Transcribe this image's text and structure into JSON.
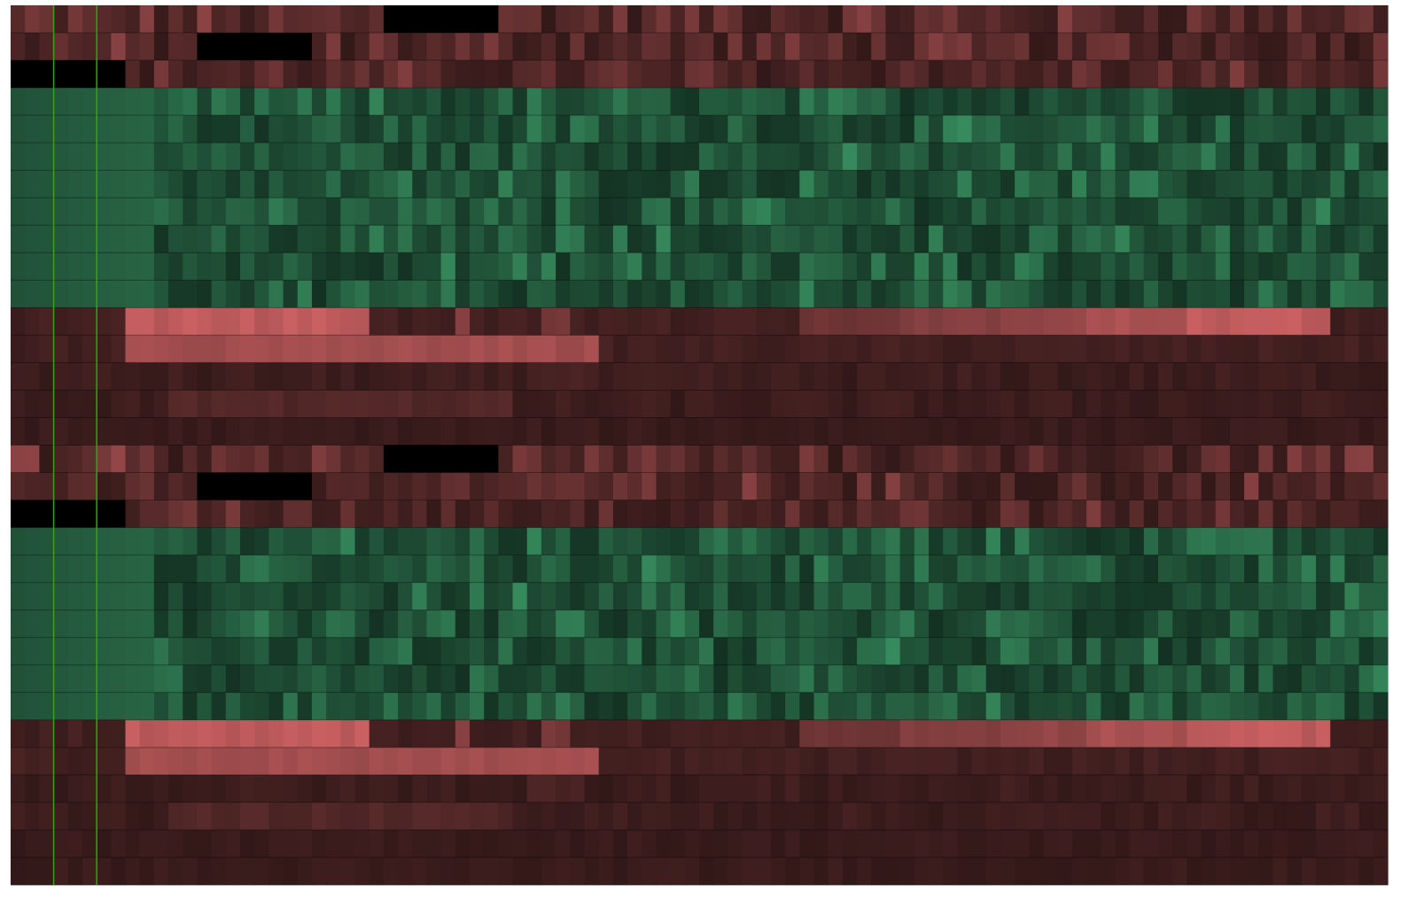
{
  "chart_data": {
    "type": "heatmap",
    "title": "",
    "xlabel": "",
    "ylabel": "",
    "grid": false,
    "legend": "none",
    "colors": {
      "low_group": "#d26466",
      "high_group": "#46b378",
      "background_low": "#321818",
      "background_high": "#143223",
      "missing": "#000000",
      "marker": "#39a019"
    },
    "marker_columns": [
      3,
      6
    ],
    "column_count": 96,
    "panels": [
      {
        "name": "panel-1",
        "rows": [
          {
            "group": "low",
            "pattern": "dense",
            "intensity": 0.55,
            "gaps": [
              [
                26,
                34
              ]
            ]
          },
          {
            "group": "low",
            "pattern": "dense",
            "intensity": 0.5,
            "gaps": [
              [
                13,
                21
              ]
            ]
          },
          {
            "group": "low",
            "pattern": "dense",
            "intensity": 0.45,
            "gaps": [
              [
                0,
                8
              ]
            ]
          },
          {
            "group": "high",
            "pattern": "dense",
            "intensity": 0.6,
            "gaps": []
          },
          {
            "group": "high",
            "pattern": "dense",
            "intensity": 0.6,
            "gaps": []
          },
          {
            "group": "high",
            "pattern": "dense",
            "intensity": 0.6,
            "gaps": []
          },
          {
            "group": "high",
            "pattern": "dense",
            "intensity": 0.6,
            "gaps": []
          },
          {
            "group": "high",
            "pattern": "dense",
            "intensity": 0.6,
            "gaps": []
          },
          {
            "group": "high",
            "pattern": "dense",
            "intensity": 0.6,
            "gaps": []
          },
          {
            "group": "high",
            "pattern": "dense",
            "intensity": 0.6,
            "gaps": []
          },
          {
            "group": "high",
            "pattern": "dense",
            "intensity": 0.6,
            "gaps": []
          },
          {
            "group": "low",
            "pattern": "bands",
            "intensity": 0.85,
            "bands": [
              [
                8,
                25,
                0.95
              ],
              [
                31,
                32,
                0.6
              ],
              [
                37,
                39,
                0.45
              ],
              [
                55,
                62,
                0.4
              ],
              [
                62,
                69,
                0.55
              ],
              [
                69,
                75,
                0.65
              ],
              [
                75,
                82,
                0.8
              ],
              [
                82,
                92,
                0.95
              ]
            ]
          },
          {
            "group": "low",
            "pattern": "bands",
            "intensity": 0.7,
            "bands": [
              [
                8,
                41,
                0.75
              ]
            ]
          },
          {
            "group": "low",
            "pattern": "faint",
            "intensity": 0.12,
            "bands": [
              [
                36,
                40,
                0.2
              ]
            ]
          },
          {
            "group": "low",
            "pattern": "faint",
            "intensity": 0.12,
            "bands": [
              [
                11,
                35,
                0.25
              ]
            ]
          },
          {
            "group": "low",
            "pattern": "faint",
            "intensity": 0.08,
            "bands": []
          }
        ]
      },
      {
        "name": "panel-2",
        "rows": [
          {
            "group": "low",
            "pattern": "dense",
            "intensity": 0.55,
            "gaps": [
              [
                26,
                34
              ]
            ]
          },
          {
            "group": "low",
            "pattern": "dense",
            "intensity": 0.5,
            "gaps": [
              [
                13,
                21
              ]
            ]
          },
          {
            "group": "low",
            "pattern": "dense",
            "intensity": 0.45,
            "gaps": [
              [
                0,
                8
              ]
            ]
          },
          {
            "group": "high",
            "pattern": "dense",
            "intensity": 0.6,
            "gaps": []
          },
          {
            "group": "high",
            "pattern": "dense",
            "intensity": 0.6,
            "gaps": []
          },
          {
            "group": "high",
            "pattern": "dense",
            "intensity": 0.6,
            "gaps": []
          },
          {
            "group": "high",
            "pattern": "dense",
            "intensity": 0.6,
            "gaps": []
          },
          {
            "group": "high",
            "pattern": "dense",
            "intensity": 0.6,
            "gaps": []
          },
          {
            "group": "high",
            "pattern": "dense",
            "intensity": 0.6,
            "gaps": []
          },
          {
            "group": "high",
            "pattern": "dense",
            "intensity": 0.6,
            "gaps": []
          },
          {
            "group": "low",
            "pattern": "bands",
            "intensity": 0.85,
            "bands": [
              [
                8,
                25,
                0.95
              ],
              [
                31,
                32,
                0.6
              ],
              [
                37,
                39,
                0.45
              ],
              [
                55,
                62,
                0.4
              ],
              [
                62,
                69,
                0.55
              ],
              [
                69,
                75,
                0.65
              ],
              [
                75,
                82,
                0.8
              ],
              [
                82,
                92,
                0.95
              ]
            ]
          },
          {
            "group": "low",
            "pattern": "bands",
            "intensity": 0.7,
            "bands": [
              [
                8,
                41,
                0.75
              ]
            ]
          },
          {
            "group": "low",
            "pattern": "faint",
            "intensity": 0.12,
            "bands": [
              [
                36,
                40,
                0.2
              ]
            ]
          },
          {
            "group": "low",
            "pattern": "faint",
            "intensity": 0.12,
            "bands": [
              [
                11,
                35,
                0.25
              ]
            ]
          },
          {
            "group": "low",
            "pattern": "faint",
            "intensity": 0.08,
            "bands": []
          },
          {
            "group": "low",
            "pattern": "faint",
            "intensity": 0.08,
            "bands": []
          }
        ]
      }
    ]
  }
}
